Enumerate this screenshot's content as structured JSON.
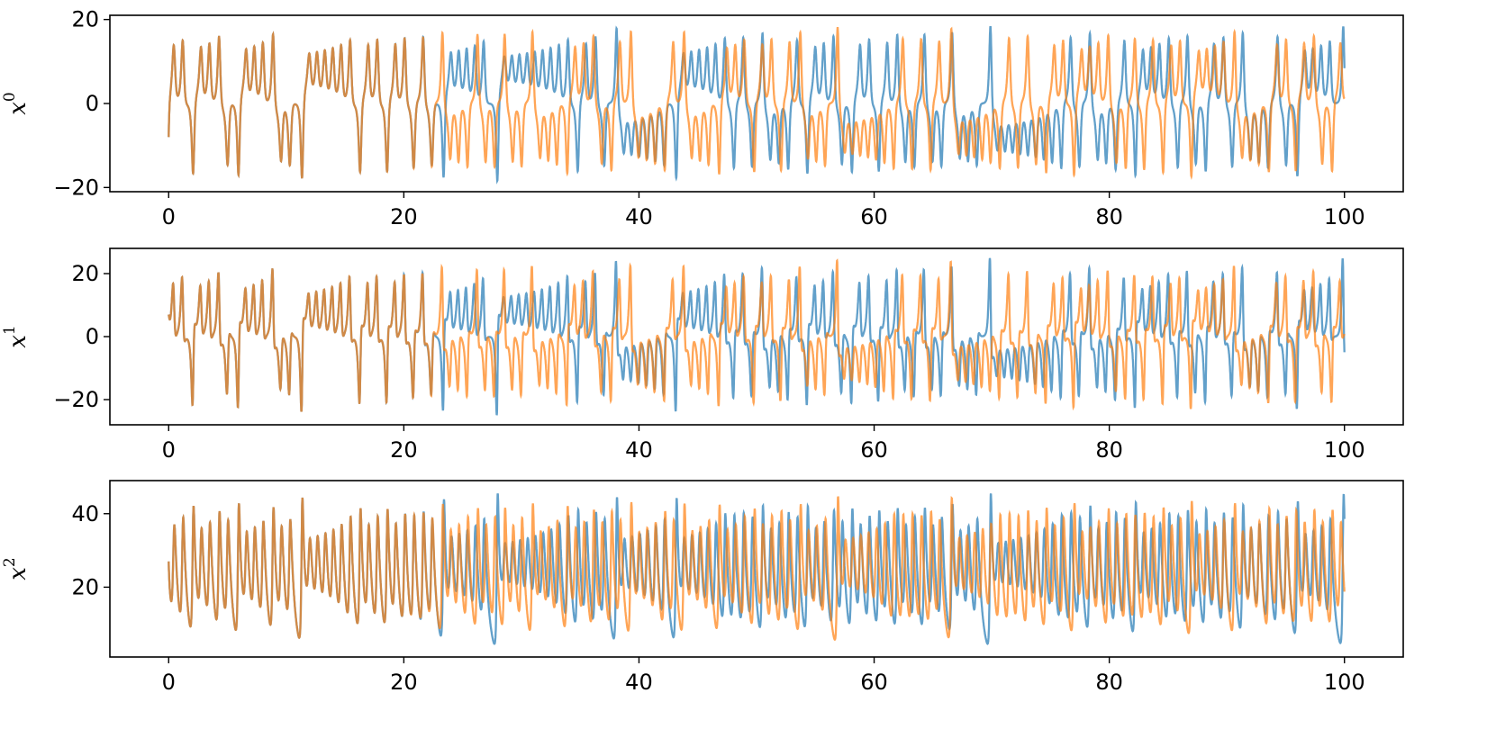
{
  "chart_data": [
    {
      "type": "line",
      "ylabel": "x",
      "ylabel_sup": "0",
      "xlim": [
        -5,
        105
      ],
      "ylim": [
        -21,
        21
      ],
      "xticks": [
        0,
        20,
        40,
        60,
        80,
        100
      ],
      "xtick_labels": [
        "0",
        "20",
        "40",
        "60",
        "80",
        "100"
      ],
      "yticks": [
        -20,
        0,
        20
      ],
      "ytick_labels": [
        "−20",
        "0",
        "20"
      ],
      "grid": false,
      "series": [
        {
          "color": "#1f77b4",
          "x0": -8.0,
          "y0": 7.0,
          "z0": 27.0,
          "dt": 0.1,
          "component": 0
        },
        {
          "color": "#ff7f0e",
          "x0": -8.0,
          "y0": 7.0,
          "z0": 27.0,
          "dt": 0.1,
          "component": 0
        }
      ]
    },
    {
      "type": "line",
      "ylabel": "x",
      "ylabel_sup": "1",
      "xlim": [
        -5,
        105
      ],
      "ylim": [
        -28,
        28
      ],
      "xticks": [
        0,
        20,
        40,
        60,
        80,
        100
      ],
      "xtick_labels": [
        "0",
        "20",
        "40",
        "60",
        "80",
        "100"
      ],
      "yticks": [
        -20,
        0,
        20
      ],
      "ytick_labels": [
        "−20",
        "0",
        "20"
      ],
      "grid": false,
      "series": [
        {
          "color": "#1f77b4",
          "component": 1
        },
        {
          "color": "#ff7f0e",
          "component": 1
        }
      ]
    },
    {
      "type": "line",
      "ylabel": "x",
      "ylabel_sup": "2",
      "xlim": [
        -5,
        105
      ],
      "ylim": [
        1,
        49
      ],
      "xticks": [
        0,
        20,
        40,
        60,
        80,
        100
      ],
      "xtick_labels": [
        "0",
        "20",
        "40",
        "60",
        "80",
        "100"
      ],
      "yticks": [
        20,
        40
      ],
      "ytick_labels": [
        "20",
        "40"
      ],
      "grid": false,
      "series": [
        {
          "color": "#1f77b4",
          "component": 2
        },
        {
          "color": "#ff7f0e",
          "component": 2
        }
      ]
    }
  ],
  "colors": {
    "series_a": "#1f77b4",
    "series_b": "#ff7f0e"
  }
}
